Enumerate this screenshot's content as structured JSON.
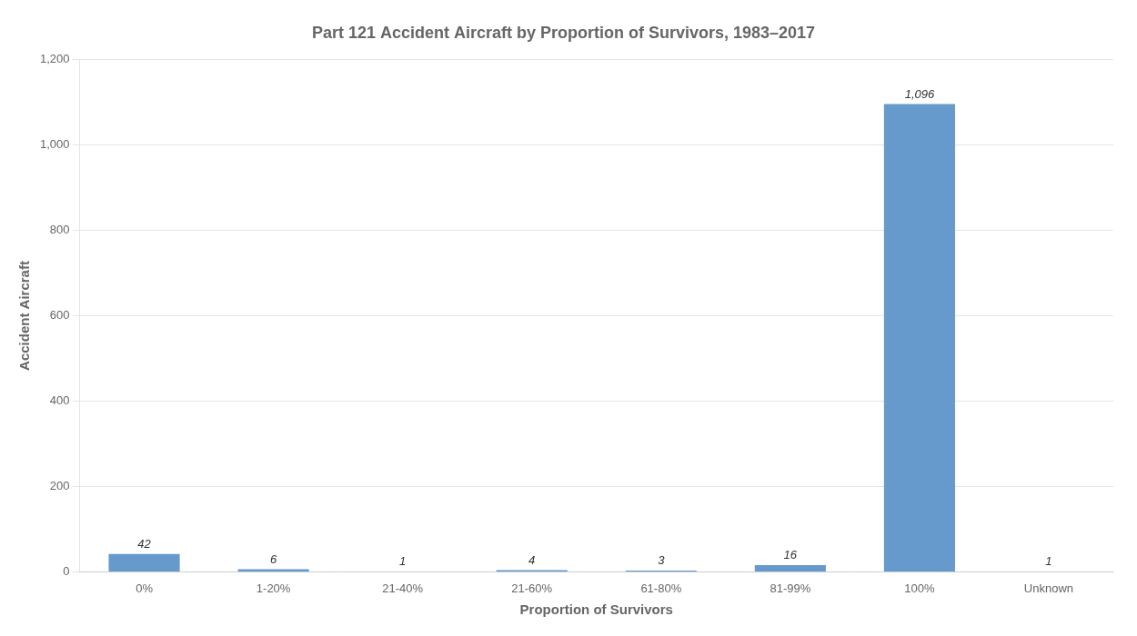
{
  "chart_data": {
    "type": "bar",
    "title": "Part 121 Accident Aircraft by Proportion of Survivors, 1983–2017",
    "xlabel": "Proportion of Survivors",
    "ylabel": "Accident Aircraft",
    "categories": [
      "0%",
      "1-20%",
      "21-40%",
      "21-60%",
      "61-80%",
      "81-99%",
      "100%",
      "Unknown"
    ],
    "values": [
      42,
      6,
      1,
      4,
      3,
      16,
      1096,
      1
    ],
    "value_labels": [
      "42",
      "6",
      "1",
      "4",
      "3",
      "16",
      "1,096",
      "1"
    ],
    "data_labels": true,
    "color": "#6699CC",
    "ylim": [
      0,
      1200
    ],
    "yticks": [
      0,
      200,
      400,
      600,
      800,
      {
        "value": 1000,
        "label": "1,000"
      },
      {
        "value": 1200,
        "label": "1,200"
      }
    ],
    "grid": true
  }
}
